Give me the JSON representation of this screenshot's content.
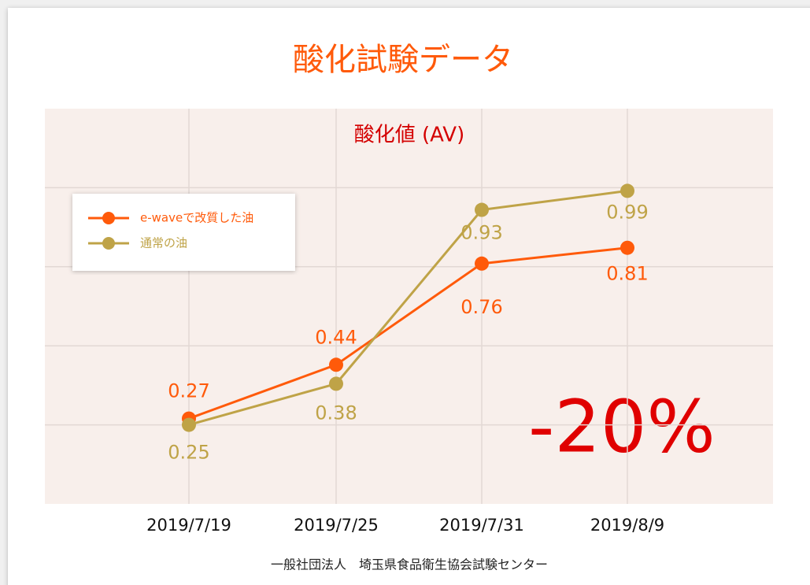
{
  "chart_data": {
    "type": "line",
    "title": "酸化試験データ",
    "subtitle": "酸化値 (AV)",
    "categories": [
      "2019/7/19",
      "2019/7/25",
      "2019/7/31",
      "2019/8/9"
    ],
    "series": [
      {
        "name": "e-waveで改質した油",
        "color": "#ff5a0a",
        "values": [
          0.27,
          0.44,
          0.76,
          0.81
        ]
      },
      {
        "name": "通常の油",
        "color": "#bfa347",
        "values": [
          0.25,
          0.38,
          0.93,
          0.99
        ]
      }
    ],
    "ylim": [
      0,
      1.25
    ],
    "yticks": [
      0.25,
      0.5,
      0.75,
      1
    ],
    "grid": true,
    "legend": "top-left",
    "annotation": "-20%",
    "footer": "一般社団法人　埼玉県食品衛生協会試験センター"
  }
}
